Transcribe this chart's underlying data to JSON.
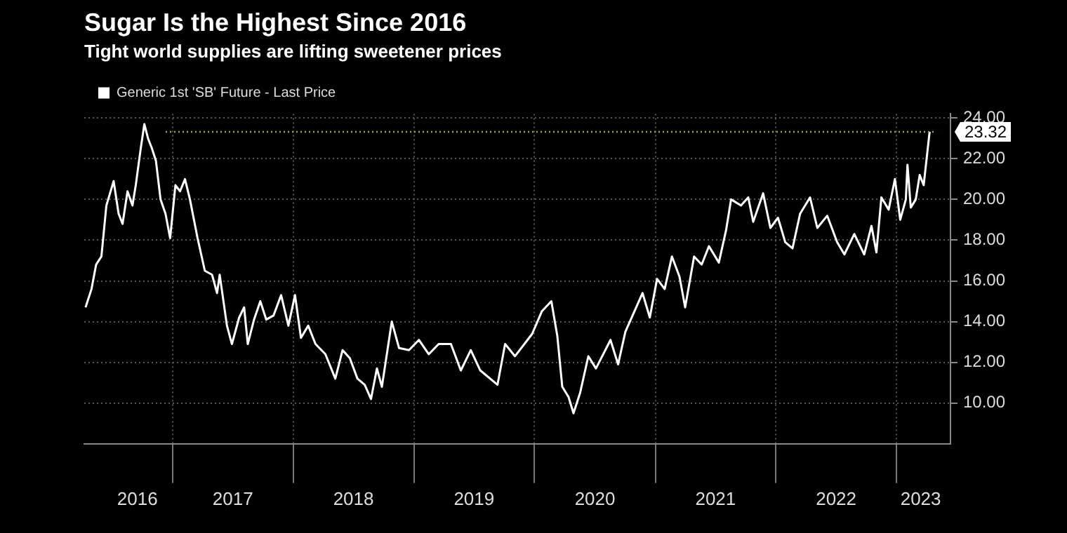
{
  "chart_data": {
    "type": "line",
    "title": "Sugar Is the Highest Since 2016",
    "subtitle": "Tight world supplies are lifting sweetener prices",
    "x": [
      "2016-04-12",
      "2016-04-30",
      "2016-05-14",
      "2016-05-30",
      "2016-06-14",
      "2016-07-06",
      "2016-07-21",
      "2016-08-02",
      "2016-08-17",
      "2016-09-01",
      "2016-09-11",
      "2016-09-26",
      "2016-10-07",
      "2016-10-18",
      "2016-10-30",
      "2016-11-11",
      "2016-11-25",
      "2016-12-10",
      "2016-12-24",
      "2017-01-09",
      "2017-01-23",
      "2017-02-07",
      "2017-02-22",
      "2017-03-17",
      "2017-04-08",
      "2017-04-30",
      "2017-05-15",
      "2017-05-23",
      "2017-06-14",
      "2017-06-29",
      "2017-07-21",
      "2017-08-05",
      "2017-08-16",
      "2017-09-04",
      "2017-09-23",
      "2017-10-11",
      "2017-11-02",
      "2017-11-25",
      "2017-12-17",
      "2018-01-06",
      "2018-01-24",
      "2018-02-15",
      "2018-03-09",
      "2018-04-08",
      "2018-05-08",
      "2018-05-30",
      "2018-06-21",
      "2018-07-14",
      "2018-08-05",
      "2018-08-24",
      "2018-09-11",
      "2018-09-26",
      "2018-10-26",
      "2018-11-17",
      "2018-12-17",
      "2019-01-16",
      "2019-02-15",
      "2019-03-17",
      "2019-04-23",
      "2019-05-23",
      "2019-06-22",
      "2019-07-21",
      "2019-09-11",
      "2019-10-04",
      "2019-11-03",
      "2019-12-25",
      "2020-01-23",
      "2020-02-21",
      "2020-03-10",
      "2020-03-25",
      "2020-04-13",
      "2020-04-28",
      "2020-05-18",
      "2020-06-12",
      "2020-07-05",
      "2020-08-18",
      "2020-09-10",
      "2020-10-02",
      "2020-11-23",
      "2020-12-15",
      "2021-01-06",
      "2021-01-29",
      "2021-02-20",
      "2021-03-15",
      "2021-04-01",
      "2021-04-28",
      "2021-05-21",
      "2021-06-12",
      "2021-07-12",
      "2021-08-03",
      "2021-08-18",
      "2021-09-17",
      "2021-10-09",
      "2021-10-24",
      "2021-11-23",
      "2021-12-15",
      "2022-01-07",
      "2022-01-29",
      "2022-02-20",
      "2022-03-15",
      "2022-04-14",
      "2022-05-06",
      "2022-06-05",
      "2022-07-05",
      "2022-07-27",
      "2022-08-26",
      "2022-09-25",
      "2022-10-17",
      "2022-11-01",
      "2022-11-16",
      "2022-12-08",
      "2022-12-27",
      "2023-01-12",
      "2023-01-29",
      "2023-02-03",
      "2023-02-13",
      "2023-02-28",
      "2023-03-12",
      "2023-03-24",
      "2023-04-11"
    ],
    "series": [
      {
        "name": "Generic 1st 'SB' Future - Last Price",
        "color": "#ffffff",
        "values": [
          14.7,
          15.6,
          16.8,
          17.2,
          19.7,
          20.9,
          19.3,
          18.8,
          20.4,
          19.7,
          20.7,
          22.5,
          23.7,
          23.0,
          22.5,
          21.9,
          20.0,
          19.3,
          18.1,
          20.7,
          20.4,
          21.0,
          20.0,
          18.1,
          16.5,
          16.3,
          15.4,
          16.3,
          13.8,
          12.9,
          14.2,
          14.7,
          12.9,
          14.1,
          15.0,
          14.1,
          14.3,
          15.3,
          13.8,
          15.3,
          13.2,
          13.8,
          12.9,
          12.4,
          11.2,
          12.6,
          12.2,
          11.2,
          10.9,
          10.2,
          11.7,
          10.8,
          14.0,
          12.7,
          12.6,
          13.1,
          12.4,
          12.9,
          12.9,
          11.6,
          12.6,
          11.6,
          10.9,
          12.9,
          12.3,
          13.4,
          14.5,
          15.0,
          13.3,
          10.8,
          10.3,
          9.5,
          10.5,
          12.3,
          11.7,
          13.1,
          11.9,
          13.5,
          15.4,
          14.2,
          16.1,
          15.6,
          17.2,
          16.2,
          14.7,
          17.2,
          16.8,
          17.7,
          16.9,
          18.5,
          20.0,
          19.7,
          20.1,
          18.9,
          20.3,
          18.6,
          19.1,
          17.9,
          17.6,
          19.3,
          20.1,
          18.6,
          19.2,
          17.9,
          17.3,
          18.3,
          17.3,
          18.7,
          17.4,
          20.1,
          19.5,
          21.0,
          19.0,
          20.0,
          21.7,
          19.6,
          20.0,
          21.2,
          20.7,
          23.32
        ]
      }
    ],
    "xlim": [
      "2016-04-08",
      "2023-06-13"
    ],
    "xticks": [
      {
        "value": "2016-09-16",
        "label": "2016"
      },
      {
        "value": "2017-01-01",
        "label": null
      },
      {
        "value": "2017-07-02",
        "label": "2017"
      },
      {
        "value": "2018-01-01",
        "label": null
      },
      {
        "value": "2018-07-02",
        "label": "2018"
      },
      {
        "value": "2019-01-01",
        "label": null
      },
      {
        "value": "2019-07-02",
        "label": "2019"
      },
      {
        "value": "2020-01-01",
        "label": null
      },
      {
        "value": "2020-07-02",
        "label": "2020"
      },
      {
        "value": "2021-01-01",
        "label": null
      },
      {
        "value": "2021-07-02",
        "label": "2021"
      },
      {
        "value": "2022-01-01",
        "label": null
      },
      {
        "value": "2022-07-02",
        "label": "2022"
      },
      {
        "value": "2023-01-01",
        "label": null
      },
      {
        "value": "2023-03-15",
        "label": "2023"
      }
    ],
    "ylim": [
      8,
      24.2
    ],
    "yticks": [
      {
        "value": 10,
        "label": "10.00"
      },
      {
        "value": 12,
        "label": "12.00"
      },
      {
        "value": 14,
        "label": "14.00"
      },
      {
        "value": 16,
        "label": "16.00"
      },
      {
        "value": 18,
        "label": "18.00"
      },
      {
        "value": 20,
        "label": "20.00"
      },
      {
        "value": 22,
        "label": "22.00"
      },
      {
        "value": 24,
        "label": "24.00"
      }
    ],
    "ref_lines": [
      {
        "axis": "y",
        "value": 23.32,
        "label": "23.32",
        "color": "#7cb342",
        "line_style": "dotted"
      }
    ],
    "grid": true,
    "legend": "top left",
    "marker": "none"
  }
}
